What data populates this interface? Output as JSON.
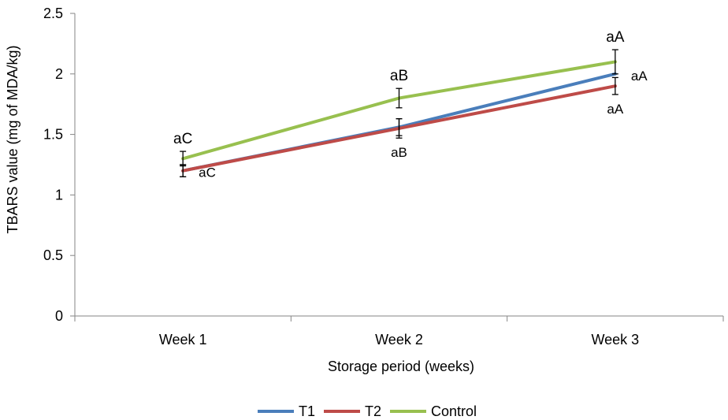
{
  "chart_data": {
    "type": "line",
    "categories": [
      "Week 1",
      "Week 2",
      "Week 3"
    ],
    "ylabel": "TBARS value (mg of MDA/kg)",
    "xlabel": "Storage period (weeks)",
    "ylim": [
      0,
      2.5
    ],
    "yticks": [
      "0",
      "0.5",
      "1",
      "1.5",
      "2",
      "2.5"
    ],
    "grid": false,
    "legend_position": "bottom",
    "series": [
      {
        "name": "T1",
        "color": "#4a7ebb",
        "values": [
          1.2,
          1.56,
          2.0
        ],
        "errors": [
          0.05,
          0.07,
          0.0
        ]
      },
      {
        "name": "T2",
        "color": "#be4b48",
        "values": [
          1.2,
          1.55,
          1.9
        ],
        "errors": [
          0.05,
          0.08,
          0.07
        ]
      },
      {
        "name": "Control",
        "color": "#98c04f",
        "values": [
          1.3,
          1.8,
          2.1
        ],
        "errors": [
          0.06,
          0.08,
          0.1
        ]
      }
    ],
    "annotations": [
      {
        "text": "aC",
        "category": 0,
        "series": "Control",
        "placement": "above"
      },
      {
        "text": "aC",
        "category": 0,
        "series": "T2",
        "placement": "right"
      },
      {
        "text": "aB",
        "category": 1,
        "series": "Control",
        "placement": "above"
      },
      {
        "text": "aB",
        "category": 1,
        "series": "T2",
        "placement": "below"
      },
      {
        "text": "aA",
        "category": 2,
        "series": "Control",
        "placement": "above"
      },
      {
        "text": "aA",
        "category": 2,
        "series": "T1",
        "placement": "right"
      },
      {
        "text": "aA",
        "category": 2,
        "series": "T2",
        "placement": "below"
      }
    ]
  }
}
